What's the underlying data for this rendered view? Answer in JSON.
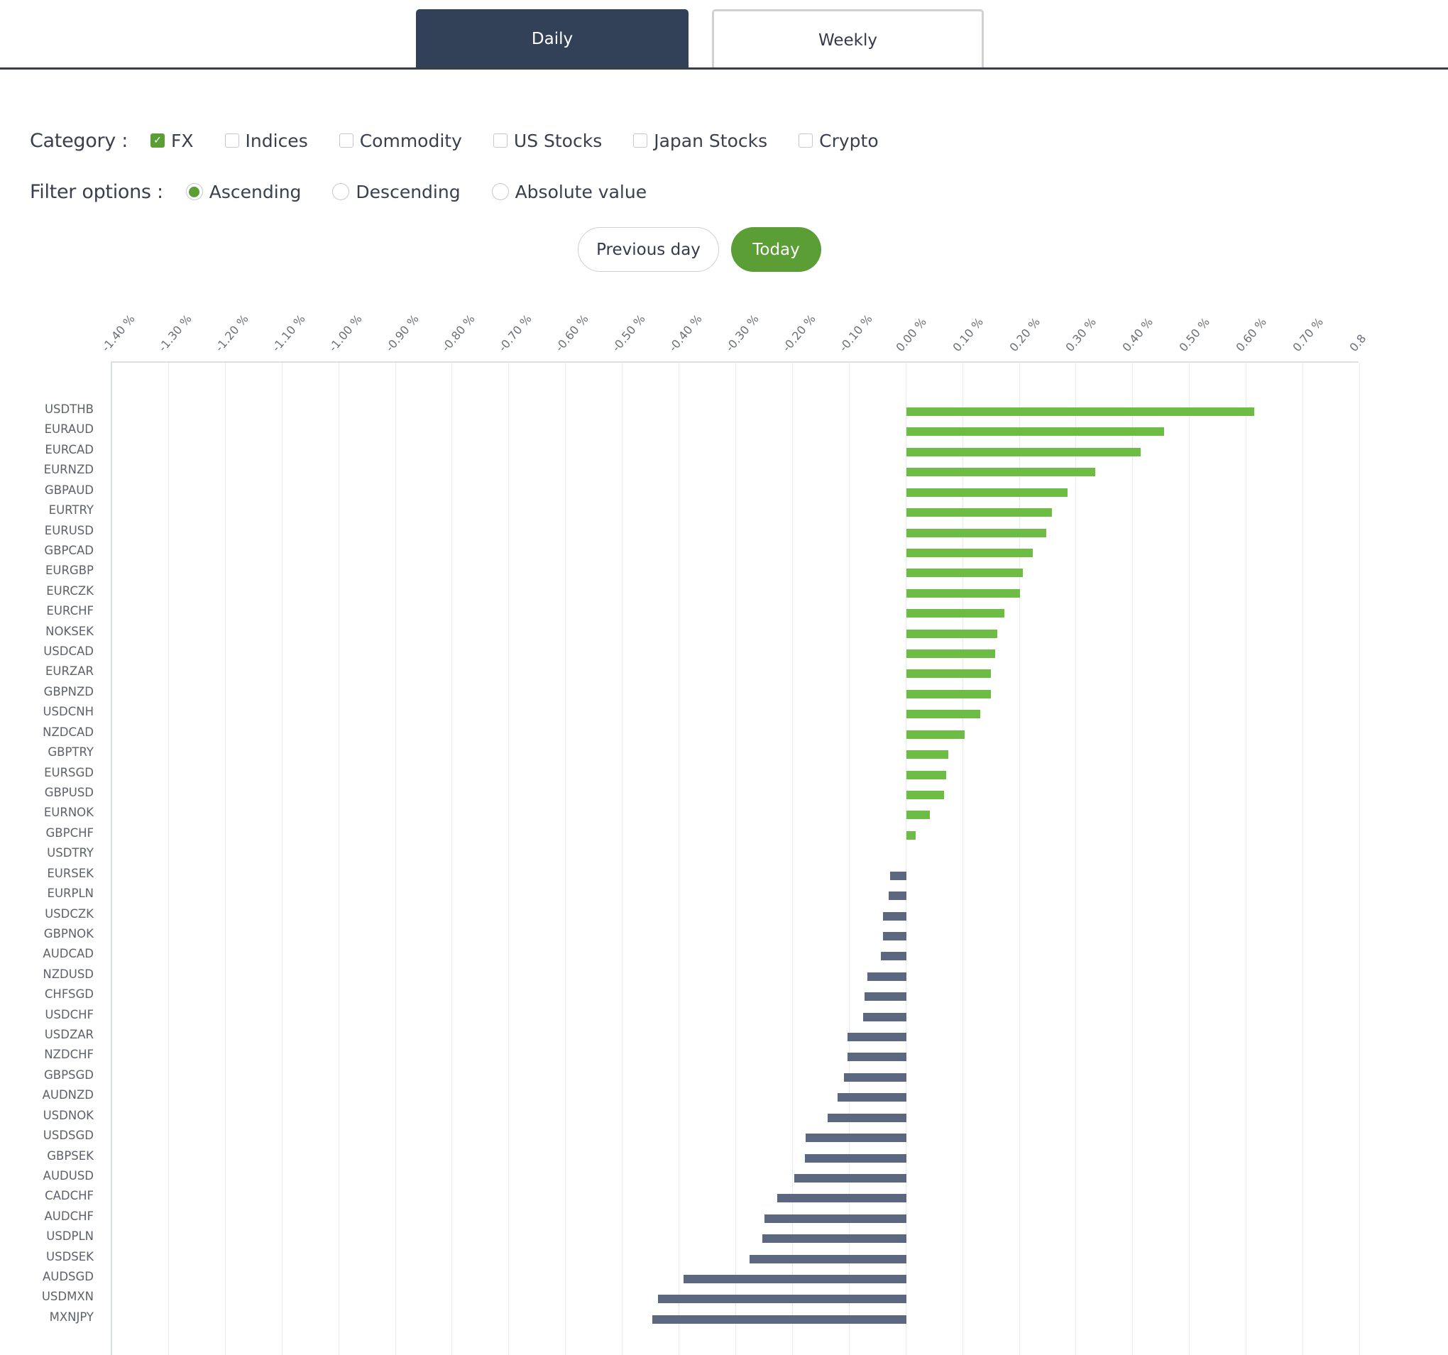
{
  "tabs": [
    {
      "label": "Daily",
      "active": true
    },
    {
      "label": "Weekly",
      "active": false
    }
  ],
  "category": {
    "label": "Category :",
    "options": [
      {
        "label": "FX",
        "checked": true
      },
      {
        "label": "Indices",
        "checked": false
      },
      {
        "label": "Commodity",
        "checked": false
      },
      {
        "label": "US Stocks",
        "checked": false
      },
      {
        "label": "Japan Stocks",
        "checked": false
      },
      {
        "label": "Crypto",
        "checked": false
      }
    ]
  },
  "filter": {
    "label": "Filter options :",
    "options": [
      {
        "label": "Ascending",
        "selected": true
      },
      {
        "label": "Descending",
        "selected": false
      },
      {
        "label": "Absolute value",
        "selected": false
      }
    ]
  },
  "day_buttons": {
    "previous_label": "Previous day",
    "today_label": "Today",
    "active": "Today"
  },
  "colors": {
    "positive": "#6dbd45",
    "negative": "#5c6880",
    "accent": "#5b9e36",
    "tab_active": "#324158"
  },
  "chart_data": {
    "type": "bar",
    "orientation": "horizontal",
    "title": "",
    "xlabel": "",
    "ylabel": "",
    "xlim": [
      -1.4,
      0.8
    ],
    "x_tick_labels": [
      "-1.40 %",
      "-1.30 %",
      "-1.20 %",
      "-1.10 %",
      "-1.00 %",
      "-0.90 %",
      "-0.80 %",
      "-0.70 %",
      "-0.60 %",
      "-0.50 %",
      "-0.40 %",
      "-0.30 %",
      "-0.20 %",
      "-0.10 %",
      "0.00 %",
      "0.10 %",
      "0.20 %",
      "0.30 %",
      "0.40 %",
      "0.50 %",
      "0.60 %",
      "0.70 %",
      "0.8"
    ],
    "x_ticks": [
      -1.4,
      -1.3,
      -1.2,
      -1.1,
      -1.0,
      -0.9,
      -0.8,
      -0.7,
      -0.6,
      -0.5,
      -0.4,
      -0.3,
      -0.2,
      -0.1,
      0.0,
      0.1,
      0.2,
      0.3,
      0.4,
      0.5,
      0.6,
      0.7,
      0.8
    ],
    "axis_position": "top",
    "grid": true,
    "legend": "none",
    "unit": "%",
    "categories": [
      "USDTHB",
      "EURAUD",
      "EURCAD",
      "EURNZD",
      "GBPAUD",
      "EURTRY",
      "EURUSD",
      "GBPCAD",
      "EURGBP",
      "EURCZK",
      "EURCHF",
      "NOKSEK",
      "USDCAD",
      "EURZAR",
      "GBPNZD",
      "USDCNH",
      "NZDCAD",
      "GBPTRY",
      "EURSGD",
      "GBPUSD",
      "EURNOK",
      "GBPCHF",
      "USDTRY",
      "EURSEK",
      "EURPLN",
      "USDCZK",
      "GBPNOK",
      "AUDCAD",
      "NZDUSD",
      "CHFSGD",
      "USDCHF",
      "USDZAR",
      "NZDCHF",
      "GBPSGD",
      "AUDNZD",
      "USDNOK",
      "USDSGD",
      "GBPSEK",
      "AUDUSD",
      "CADCHF",
      "AUDCHF",
      "USDPLN",
      "USDSEK",
      "AUDSGD",
      "USDMXN",
      "MXNJPY"
    ],
    "values": [
      0.614,
      0.455,
      0.413,
      0.333,
      0.284,
      0.257,
      0.247,
      0.223,
      0.206,
      0.201,
      0.173,
      0.16,
      0.157,
      0.149,
      0.149,
      0.131,
      0.103,
      0.074,
      0.07,
      0.067,
      0.042,
      0.017,
      0.0,
      -0.028,
      -0.031,
      -0.041,
      -0.041,
      -0.045,
      -0.069,
      -0.073,
      -0.076,
      -0.103,
      -0.103,
      -0.11,
      -0.121,
      -0.138,
      -0.177,
      -0.178,
      -0.198,
      -0.227,
      -0.25,
      -0.254,
      -0.276,
      -0.393,
      -0.438,
      -0.448
    ]
  }
}
